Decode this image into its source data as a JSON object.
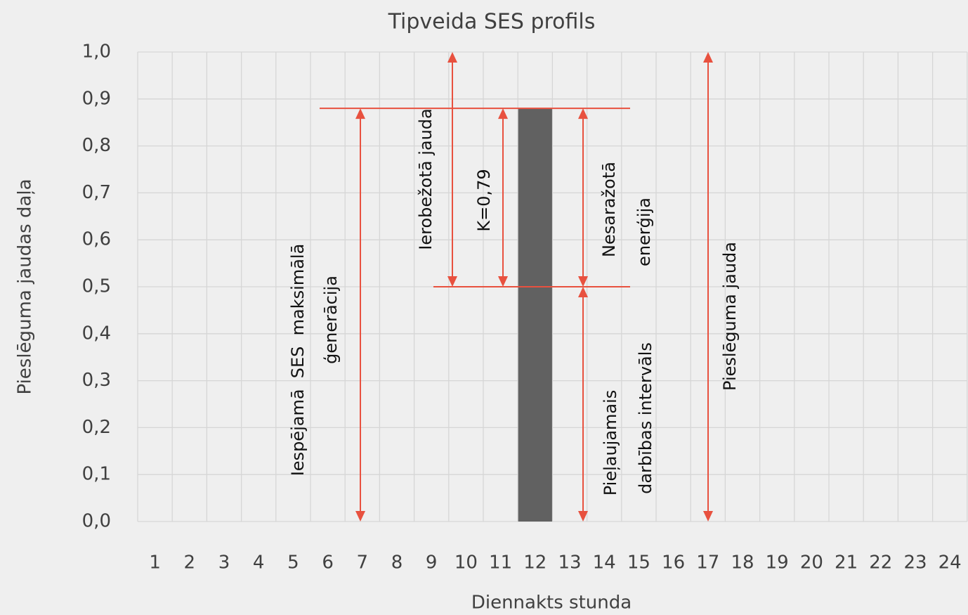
{
  "chart_data": {
    "type": "bar",
    "title": "Tipveida SES profils",
    "x_label": "Diennakts stunda",
    "y_label": "Pieslēguma jaudas daļa",
    "categories": [
      "1",
      "2",
      "3",
      "4",
      "5",
      "6",
      "7",
      "8",
      "9",
      "10",
      "11",
      "12",
      "13",
      "14",
      "15",
      "16",
      "17",
      "18",
      "19",
      "20",
      "21",
      "22",
      "23",
      "24"
    ],
    "values": [
      null,
      null,
      null,
      null,
      null,
      null,
      null,
      null,
      null,
      null,
      null,
      0.88,
      null,
      null,
      null,
      null,
      null,
      null,
      null,
      null,
      null,
      null,
      null,
      null
    ],
    "color": "#616161",
    "ylim": [
      0,
      1
    ],
    "yticks": [
      {
        "value": 0,
        "label": "0,0"
      },
      {
        "value": 0.1,
        "label": "0,1"
      },
      {
        "value": 0.2,
        "label": "0,2"
      },
      {
        "value": 0.3,
        "label": "0,3"
      },
      {
        "value": 0.4,
        "label": "0,4"
      },
      {
        "value": 0.5,
        "label": "0,5"
      },
      {
        "value": 0.6,
        "label": "0,6"
      },
      {
        "value": 0.7,
        "label": "0,7"
      },
      {
        "value": 0.8,
        "label": "0,8"
      },
      {
        "value": 0.9,
        "label": "0,9"
      },
      {
        "value": 1,
        "label": "1,0"
      }
    ],
    "grid": true,
    "annotation_color": "#e8513f",
    "hlines": [
      0.88,
      0.5
    ],
    "annotations": [
      {
        "lines": [
          "Iespējamā  SES  maksimālā",
          "ģenerācija"
        ],
        "range": [
          0,
          0.88
        ]
      },
      {
        "lines": [
          "Ierobežotā jauda"
        ],
        "range": [
          0.5,
          1
        ]
      },
      {
        "lines": [
          "K=0,79"
        ],
        "range": [
          0.5,
          0.88
        ]
      },
      {
        "lines": [
          "Nesaražotā",
          "enerģija"
        ],
        "range": [
          0.5,
          0.88
        ]
      },
      {
        "lines": [
          "Pieļaujamais",
          "darbības intervāls"
        ],
        "range": [
          0,
          0.5
        ]
      },
      {
        "lines": [
          "Pieslēguma jauda"
        ],
        "range": [
          0,
          1
        ]
      }
    ]
  }
}
